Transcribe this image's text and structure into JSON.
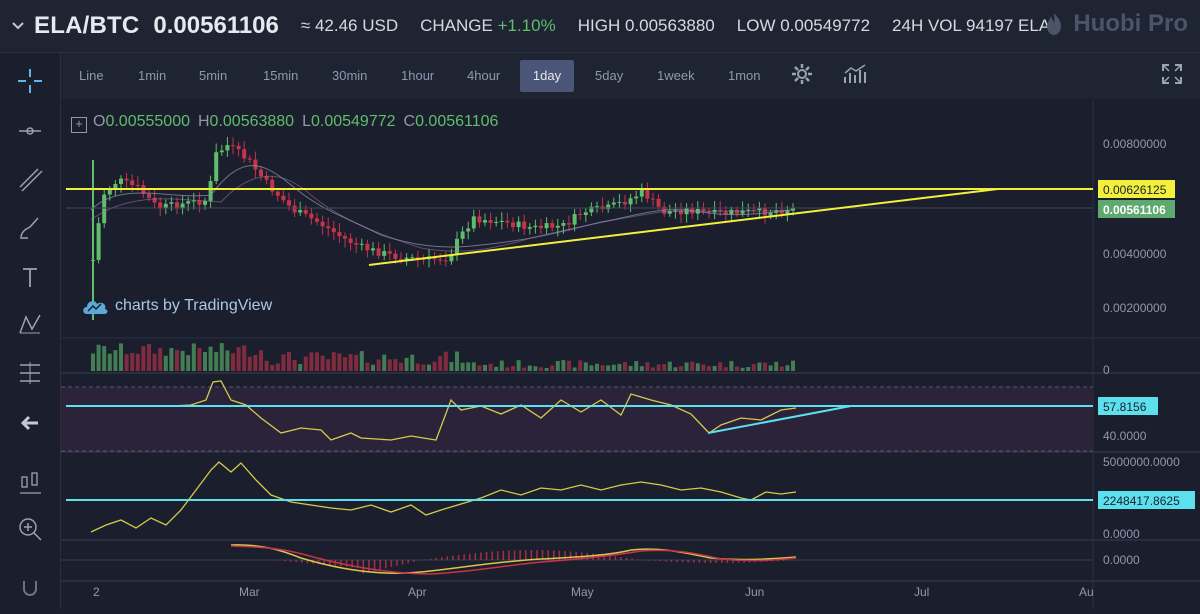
{
  "header": {
    "pair": "ELA/BTC",
    "price": "0.00561106",
    "usd": "≈ 42.46 USD",
    "change_label": "CHANGE",
    "change_value": "+1.10%",
    "high": "HIGH 0.00563880",
    "low": "LOW 0.00549772",
    "vol": "24H VOL 94197 ELA",
    "brand": "Huobi Pro"
  },
  "timeframes": [
    "Line",
    "1min",
    "5min",
    "15min",
    "30min",
    "1hour",
    "4hour",
    "1day",
    "5day",
    "1week",
    "1mon"
  ],
  "active_timeframe": "1day",
  "ohlc": {
    "o_label": "O",
    "o": "0.00555000",
    "h_label": "H",
    "h": "0.00563880",
    "l_label": "L",
    "l": "0.00549772",
    "c_label": "C",
    "c": "0.00561106"
  },
  "watermark": "charts by TradingView",
  "price_axis": [
    "0.00800000",
    "0.00400000",
    "0.00200000"
  ],
  "price_labels": {
    "resistance": "0.00626125",
    "last": "0.00561106"
  },
  "volume_axis": "0",
  "rsi_axis": "40.0000",
  "rsi_label": "57.8156",
  "indicator_axis": "5000000.0000",
  "indicator_label": "2248417.8625",
  "macd_axis": [
    "0.0000",
    "0.0000"
  ],
  "time_axis": [
    "2",
    "Mar",
    "Apr",
    "May",
    "Jun",
    "Jul",
    "Au"
  ],
  "colors": {
    "up": "#5fbd6c",
    "down": "#c6334a",
    "yellow": "#f2f03c",
    "cyan": "#5de0ee",
    "price_box": "#5fa870",
    "accent": "#4a5577"
  },
  "chart_data": {
    "type": "candlestick",
    "timeframe": "1day",
    "last_close": 0.00561106,
    "resistance_level": 0.00626125,
    "panes": [
      "price",
      "volume",
      "rsi",
      "indicator",
      "macd"
    ]
  }
}
